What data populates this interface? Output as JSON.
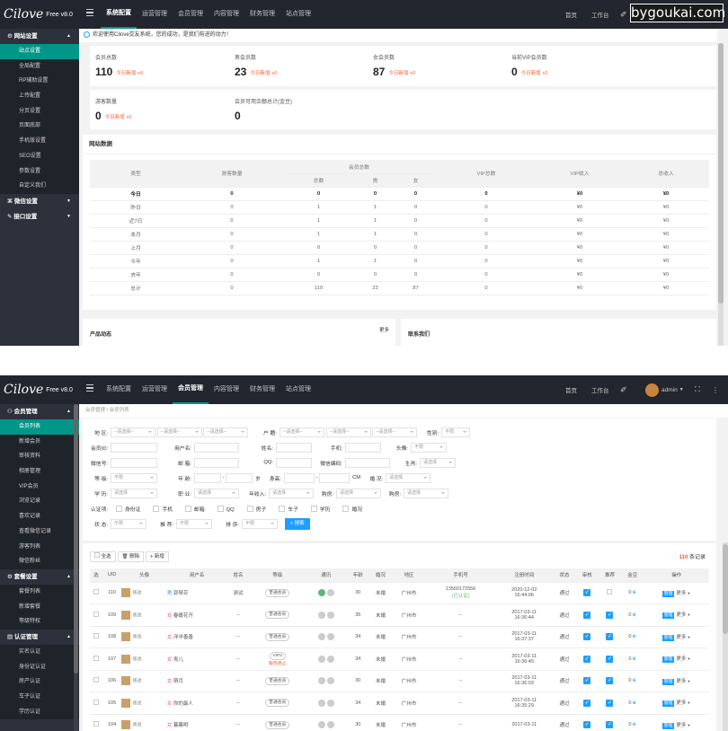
{
  "watermark": "bygoukai.com",
  "logo": {
    "script": "Cilove",
    "version": "Free v8.0"
  },
  "w1": {
    "menu": [
      "系统配置",
      "运营管理",
      "会员管理",
      "内容管理",
      "财务管理",
      "站点管理"
    ],
    "right": [
      "首页",
      "工作台"
    ],
    "side": {
      "group1": "网站设置",
      "items": [
        "站点设置",
        "全局配置",
        "RP辅助设置",
        "上传配置",
        "分页设置",
        "页面底部",
        "手机版设置",
        "SEO设置",
        "参数设置",
        "自定义我们"
      ],
      "group2": "微信设置",
      "group3": "接口设置"
    },
    "notice": "欢迎使用Cilove交友系统，您的成功，是我们前进的动力！",
    "stats": [
      {
        "label": "会员总数",
        "value": "110",
        "delta": "今日新增 +0"
      },
      {
        "label": "男会员数",
        "value": "23",
        "delta": "今日新增 +0"
      },
      {
        "label": "女会员数",
        "value": "87",
        "delta": "今日新增 +0"
      },
      {
        "label": "当前VIP会员数",
        "value": "0",
        "delta": "今日新增 +0"
      },
      {
        "label": "游客数量",
        "value": "0",
        "delta": "今日新增 +0"
      },
      {
        "label": "会员可用余额总计(金豆)",
        "value": "0",
        "delta": ""
      }
    ],
    "site_title": "网站数据",
    "table_head": {
      "type": "类型",
      "visitors": "游客数量",
      "members": "会员总数",
      "total": "总数",
      "male": "男",
      "female": "女",
      "vip": "VIP总数",
      "vip_income": "VIP收入",
      "income": "总收入"
    },
    "rows": [
      [
        "今日",
        "0",
        "0",
        "0",
        "0",
        "0",
        "¥0",
        "¥0"
      ],
      [
        "昨日",
        "0",
        "1",
        "1",
        "0",
        "0",
        "¥0",
        "¥0"
      ],
      [
        "近7日",
        "0",
        "1",
        "1",
        "0",
        "0",
        "¥0",
        "¥0"
      ],
      [
        "本月",
        "0",
        "1",
        "1",
        "0",
        "0",
        "¥0",
        "¥0"
      ],
      [
        "上月",
        "0",
        "0",
        "0",
        "0",
        "0",
        "¥0",
        "¥0"
      ],
      [
        "今年",
        "0",
        "1",
        "1",
        "0",
        "0",
        "¥0",
        "¥0"
      ],
      [
        "去年",
        "0",
        "0",
        "0",
        "0",
        "0",
        "¥0",
        "¥0"
      ],
      [
        "总计",
        "0",
        "110",
        "23",
        "87",
        "0",
        "¥0",
        "¥0"
      ]
    ],
    "bottom": {
      "left": "产品动态",
      "more": "更多",
      "right": "联系我们"
    }
  },
  "w2": {
    "menu": [
      "系统配置",
      "运营管理",
      "会员管理",
      "内容管理",
      "财务管理",
      "站点管理"
    ],
    "right": [
      "首页",
      "工作台",
      "admin"
    ],
    "side": {
      "group1": "会员管理",
      "items1": [
        "会员列表",
        "新增会员",
        "审核资料",
        "相册管理",
        "VIP会员",
        "浏览记录",
        "喜欢记录",
        "查看微信记录",
        "游客列表",
        "微信粉丝"
      ],
      "group2": "套餐设置",
      "items2": [
        "套餐列表",
        "新增套餐",
        "等级特权"
      ],
      "group3": "认证管理",
      "items3": [
        "实名认证",
        "身份证认证",
        "房产认证",
        "车子认证",
        "学历认证"
      ]
    },
    "breadcrumb": [
      "会员管理",
      "会员列表"
    ],
    "filter": {
      "area": "地 区:",
      "sel": "--请选择--",
      "hukou": "户 籍:",
      "gender": "性别:",
      "unlimited": "不限",
      "uid": "会员ID:",
      "uname": "用户名:",
      "name": "姓名:",
      "phone": "手机:",
      "avatar": "头像:",
      "wechat": "微信号:",
      "email": "邮 箱:",
      "qq": "QQ:",
      "wxcode": "微信编码:",
      "birth": "生肖:",
      "pick": "请选择",
      "level": "等 级:",
      "age": "年 龄:",
      "sui": "岁",
      "height": "身高:",
      "cm": "CM",
      "marriage": "婚 况:",
      "edu": "学 历:",
      "job": "职 业:",
      "income": "年收入:",
      "house": "购房:",
      "car": "购房:",
      "verify": "认证项:",
      "verify_items": [
        "身份证",
        "手机",
        "邮箱",
        "QQ",
        "房子",
        "车子",
        "学历",
        "婚况"
      ],
      "status": "状 态:",
      "recommend": "推 荐:",
      "sort": "排 序:",
      "search": "搜索"
    },
    "toolbar": {
      "select_all": "全选",
      "delete": "删除",
      "add": "新增",
      "count": "110",
      "count_unit": "条记录"
    },
    "columns": [
      "选",
      "UID",
      "头像",
      "用户名",
      "姓名",
      "等级",
      "通讯",
      "年龄",
      "婚况",
      "地区",
      "手机号",
      "注册时间",
      "状态",
      "审核",
      "推荐",
      "金豆",
      "操作"
    ],
    "members": [
      {
        "uid": "110",
        "g": "男",
        "user": "郭琴芬",
        "name": "测试",
        "level": "普通会员",
        "level2": "",
        "age": "30",
        "mar": "未婚",
        "area": "广州市",
        "phone": "13560172556",
        "phone2": "(已认证)",
        "t1": "2020-12-02",
        "t2": "16:44:06",
        "status": "通过",
        "audit": true,
        "rec": false,
        "coin": "0"
      },
      {
        "uid": "109",
        "g": "女",
        "user": "春暖花开",
        "name": "--",
        "level": "普通会员",
        "level2": "",
        "age": "35",
        "mar": "未婚",
        "area": "广州市",
        "phone": "--",
        "phone2": "",
        "t1": "2017-03-11",
        "t2": "16:36:44",
        "status": "通过",
        "audit": true,
        "rec": true,
        "coin": "0"
      },
      {
        "uid": "108",
        "g": "女",
        "user": "洋洋善善",
        "name": "--",
        "level": "普通会员",
        "level2": "",
        "age": "34",
        "mar": "未婚",
        "area": "广州市",
        "phone": "--",
        "phone2": "",
        "t1": "2017-03-11",
        "t2": "16:37:37",
        "status": "通过",
        "audit": true,
        "rec": true,
        "coin": "0"
      },
      {
        "uid": "107",
        "g": "女",
        "user": "青儿",
        "name": "--",
        "level": "VIP3",
        "level2": "服务停止",
        "age": "34",
        "mar": "未婚",
        "area": "广州市",
        "phone": "--",
        "phone2": "",
        "t1": "2017-03-11",
        "t2": "16:36:45",
        "status": "通过",
        "audit": true,
        "rec": true,
        "coin": "0"
      },
      {
        "uid": "106",
        "g": "女",
        "user": "萌月",
        "name": "--",
        "level": "普通会员",
        "level2": "",
        "age": "30",
        "mar": "未婚",
        "area": "广州市",
        "phone": "--",
        "phone2": "",
        "t1": "2017-03-11",
        "t2": "16:36:03",
        "status": "通过",
        "audit": true,
        "rec": true,
        "coin": "0"
      },
      {
        "uid": "105",
        "g": "女",
        "user": "你的最人",
        "name": "--",
        "level": "普通会员",
        "level2": "",
        "age": "34",
        "mar": "未婚",
        "area": "广州市",
        "phone": "--",
        "phone2": "",
        "t1": "2017-03-11",
        "t2": "16:35:29",
        "status": "通过",
        "audit": true,
        "rec": true,
        "coin": "0"
      },
      {
        "uid": "104",
        "g": "女",
        "user": "暮暮明",
        "name": "--",
        "level": "普通会员",
        "level2": "",
        "age": "30",
        "mar": "未婚",
        "area": "广州市",
        "phone": "--",
        "phone2": "",
        "t1": "2017-03-11",
        "t2": "",
        "status": "通过",
        "audit": true,
        "rec": true,
        "coin": "0"
      }
    ],
    "op": {
      "manage": "管理",
      "more": "更多"
    },
    "edit": "修改"
  },
  "colors": {
    "topbar": "#23262e",
    "sidebar": "#2c313b",
    "accent": "#009688",
    "blue": "#1e9fff",
    "red": "#ff5722",
    "green": "#5fb878"
  }
}
